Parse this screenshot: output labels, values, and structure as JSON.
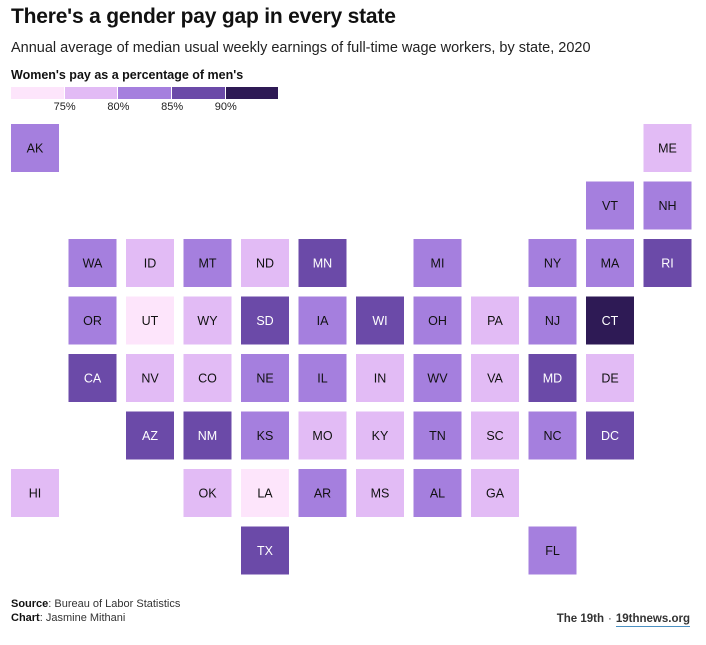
{
  "title": "There's a gender pay gap in every state",
  "subtitle": "Annual average of median usual weekly earnings of full-time wage workers, by state, 2020",
  "legend": {
    "title": "Women's pay as a percentage of men's",
    "bins": [
      {
        "color": "#fde5fb"
      },
      {
        "color": "#e2bbf5"
      },
      {
        "color": "#a57fde"
      },
      {
        "color": "#6b4aa8"
      },
      {
        "color": "#2e1a55"
      }
    ],
    "ticks": [
      "75%",
      "80%",
      "85%",
      "90%"
    ]
  },
  "chart_data": {
    "type": "heatmap",
    "tiles": [
      {
        "state": "AK",
        "col": 0,
        "row": 0,
        "bin": 2
      },
      {
        "state": "ME",
        "col": 11,
        "row": 0,
        "bin": 1
      },
      {
        "state": "VT",
        "col": 10,
        "row": 1,
        "bin": 2
      },
      {
        "state": "NH",
        "col": 11,
        "row": 1,
        "bin": 2
      },
      {
        "state": "WA",
        "col": 1,
        "row": 2,
        "bin": 2
      },
      {
        "state": "ID",
        "col": 2,
        "row": 2,
        "bin": 1
      },
      {
        "state": "MT",
        "col": 3,
        "row": 2,
        "bin": 2
      },
      {
        "state": "ND",
        "col": 4,
        "row": 2,
        "bin": 1
      },
      {
        "state": "MN",
        "col": 5,
        "row": 2,
        "bin": 3
      },
      {
        "state": "MI",
        "col": 7,
        "row": 2,
        "bin": 2
      },
      {
        "state": "NY",
        "col": 9,
        "row": 2,
        "bin": 2
      },
      {
        "state": "MA",
        "col": 10,
        "row": 2,
        "bin": 2
      },
      {
        "state": "RI",
        "col": 11,
        "row": 2,
        "bin": 3
      },
      {
        "state": "OR",
        "col": 1,
        "row": 3,
        "bin": 2
      },
      {
        "state": "UT",
        "col": 2,
        "row": 3,
        "bin": 0
      },
      {
        "state": "WY",
        "col": 3,
        "row": 3,
        "bin": 1
      },
      {
        "state": "SD",
        "col": 4,
        "row": 3,
        "bin": 3
      },
      {
        "state": "IA",
        "col": 5,
        "row": 3,
        "bin": 2
      },
      {
        "state": "WI",
        "col": 6,
        "row": 3,
        "bin": 3
      },
      {
        "state": "OH",
        "col": 7,
        "row": 3,
        "bin": 2
      },
      {
        "state": "PA",
        "col": 8,
        "row": 3,
        "bin": 1
      },
      {
        "state": "NJ",
        "col": 9,
        "row": 3,
        "bin": 2
      },
      {
        "state": "CT",
        "col": 10,
        "row": 3,
        "bin": 4
      },
      {
        "state": "CA",
        "col": 1,
        "row": 4,
        "bin": 3
      },
      {
        "state": "NV",
        "col": 2,
        "row": 4,
        "bin": 1
      },
      {
        "state": "CO",
        "col": 3,
        "row": 4,
        "bin": 1
      },
      {
        "state": "NE",
        "col": 4,
        "row": 4,
        "bin": 2
      },
      {
        "state": "IL",
        "col": 5,
        "row": 4,
        "bin": 2
      },
      {
        "state": "IN",
        "col": 6,
        "row": 4,
        "bin": 1
      },
      {
        "state": "WV",
        "col": 7,
        "row": 4,
        "bin": 2
      },
      {
        "state": "VA",
        "col": 8,
        "row": 4,
        "bin": 1
      },
      {
        "state": "MD",
        "col": 9,
        "row": 4,
        "bin": 3
      },
      {
        "state": "DE",
        "col": 10,
        "row": 4,
        "bin": 1
      },
      {
        "state": "AZ",
        "col": 2,
        "row": 5,
        "bin": 3
      },
      {
        "state": "NM",
        "col": 3,
        "row": 5,
        "bin": 3
      },
      {
        "state": "KS",
        "col": 4,
        "row": 5,
        "bin": 2
      },
      {
        "state": "MO",
        "col": 5,
        "row": 5,
        "bin": 1
      },
      {
        "state": "KY",
        "col": 6,
        "row": 5,
        "bin": 1
      },
      {
        "state": "TN",
        "col": 7,
        "row": 5,
        "bin": 2
      },
      {
        "state": "SC",
        "col": 8,
        "row": 5,
        "bin": 1
      },
      {
        "state": "NC",
        "col": 9,
        "row": 5,
        "bin": 2
      },
      {
        "state": "DC",
        "col": 10,
        "row": 5,
        "bin": 3
      },
      {
        "state": "HI",
        "col": 0,
        "row": 6,
        "bin": 1
      },
      {
        "state": "OK",
        "col": 3,
        "row": 6,
        "bin": 1
      },
      {
        "state": "LA",
        "col": 4,
        "row": 6,
        "bin": 0
      },
      {
        "state": "AR",
        "col": 5,
        "row": 6,
        "bin": 2
      },
      {
        "state": "MS",
        "col": 6,
        "row": 6,
        "bin": 1
      },
      {
        "state": "AL",
        "col": 7,
        "row": 6,
        "bin": 2
      },
      {
        "state": "GA",
        "col": 8,
        "row": 6,
        "bin": 1
      },
      {
        "state": "TX",
        "col": 4,
        "row": 7,
        "bin": 3
      },
      {
        "state": "FL",
        "col": 9,
        "row": 7,
        "bin": 2
      }
    ]
  },
  "footer": {
    "source_label": "Source",
    "source_text": ": Bureau of Labor Statistics",
    "chart_label": "Chart",
    "chart_text": ": Jasmine Mithani",
    "brand": "The 19th",
    "separator": "·",
    "site": "19thnews.org"
  }
}
